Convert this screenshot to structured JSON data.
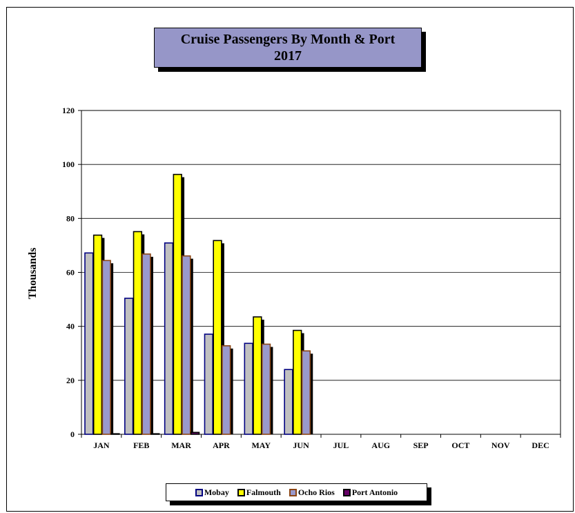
{
  "chart_data": {
    "type": "bar",
    "title": "Cruise Passengers By Month & Port",
    "subtitle": "2017",
    "xlabel": "",
    "ylabel": "Thousands",
    "ylim": [
      0,
      120
    ],
    "yticks": [
      0,
      20,
      40,
      60,
      80,
      100,
      120
    ],
    "grid": true,
    "legend_position": "bottom",
    "categories": [
      "JAN",
      "FEB",
      "MAR",
      "APR",
      "MAY",
      "JUN",
      "JUL",
      "AUG",
      "SEP",
      "OCT",
      "NOV",
      "DEC"
    ],
    "series": [
      {
        "name": "Mobay",
        "fill": "#c0c0c0",
        "stroke": "#000080",
        "values": [
          67.2,
          50.4,
          70.9,
          37.1,
          33.7,
          24.0,
          null,
          null,
          null,
          null,
          null,
          null
        ]
      },
      {
        "name": "Falmouth",
        "fill": "#ffff00",
        "stroke": "#000000",
        "values": [
          73.8,
          75.1,
          96.3,
          71.8,
          43.5,
          38.5,
          null,
          null,
          null,
          null,
          null,
          null
        ]
      },
      {
        "name": "Ocho Rios",
        "fill": "#9999cc",
        "stroke": "#8b4513",
        "values": [
          64.4,
          66.8,
          66.1,
          32.8,
          33.4,
          30.9,
          null,
          null,
          null,
          null,
          null,
          null
        ]
      },
      {
        "name": "Port Antonio",
        "fill": "#660066",
        "stroke": "#000000",
        "values": [
          0.2,
          0.2,
          0.7,
          0,
          0,
          0,
          null,
          null,
          null,
          null,
          null,
          null
        ]
      }
    ]
  }
}
